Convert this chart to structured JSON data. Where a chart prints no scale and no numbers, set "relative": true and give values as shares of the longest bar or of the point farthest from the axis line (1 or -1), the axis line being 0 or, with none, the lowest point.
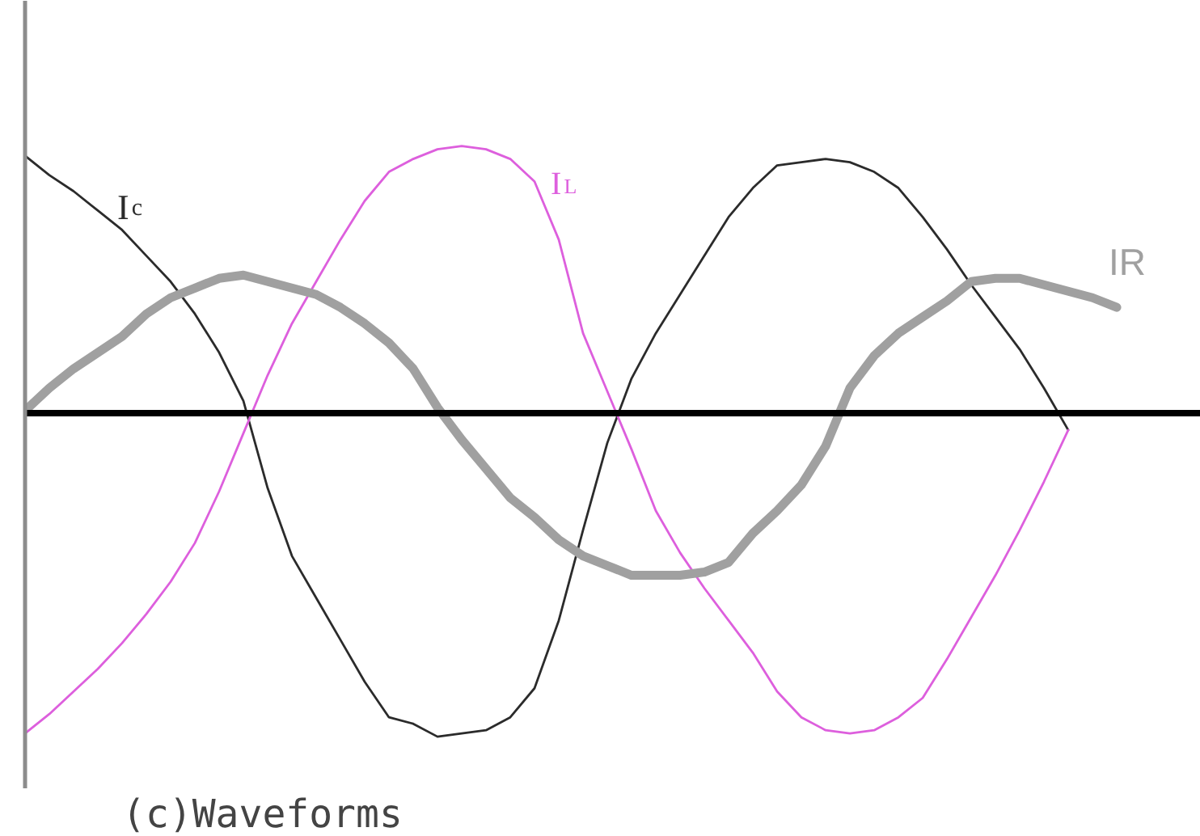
{
  "chart_data": {
    "type": "line",
    "relative": true,
    "categories": [
      null,
      null,
      null,
      null,
      null,
      null,
      null,
      null,
      null,
      null,
      null,
      null,
      null,
      null,
      null,
      null,
      null,
      null,
      null,
      null,
      null,
      null,
      null,
      null,
      null,
      null,
      null,
      null,
      null,
      null,
      null,
      null,
      null,
      null,
      null,
      null,
      null,
      null,
      null,
      null,
      null,
      null,
      null,
      null,
      null,
      null
    ],
    "series": [
      {
        "name": "I$_{c}$",
        "color": "#2b2b2b",
        "values": [
          0.8,
          0.74,
          0.69,
          0.63,
          0.57,
          0.49,
          0.41,
          0.31,
          0.19,
          0.04,
          -0.23,
          -0.44,
          -0.57,
          -0.7,
          -0.83,
          -0.94,
          -0.96,
          -1.0,
          -0.99,
          -0.98,
          -0.94,
          -0.85,
          -0.64,
          -0.36,
          -0.09,
          0.11,
          0.25,
          0.37,
          0.49,
          0.61,
          0.7,
          0.77,
          0.78,
          0.79,
          0.78,
          0.75,
          0.7,
          0.61,
          0.51,
          0.4,
          0.3,
          0.2,
          0.08,
          -0.05,
          null,
          null
        ]
      },
      {
        "name": "I$_{L}$",
        "color": "#dd5fdd",
        "values": [
          -0.99,
          -0.93,
          -0.86,
          -0.79,
          -0.71,
          -0.62,
          -0.52,
          -0.4,
          -0.24,
          -0.06,
          0.12,
          0.28,
          0.41,
          0.54,
          0.66,
          0.75,
          0.79,
          0.82,
          0.83,
          0.82,
          0.79,
          0.72,
          0.54,
          0.25,
          0.07,
          -0.11,
          -0.3,
          -0.43,
          -0.54,
          -0.64,
          -0.74,
          -0.86,
          -0.94,
          -0.98,
          -0.99,
          -0.98,
          -0.94,
          -0.88,
          -0.76,
          -0.63,
          -0.5,
          -0.36,
          -0.21,
          -0.05,
          null,
          null
        ]
      },
      {
        "name": "IR",
        "color": "#a0a0a0",
        "values": [
          0.01,
          0.08,
          0.14,
          0.19,
          0.24,
          0.31,
          0.36,
          0.39,
          0.42,
          0.43,
          0.41,
          0.39,
          0.37,
          0.33,
          0.28,
          0.22,
          0.14,
          0.02,
          -0.08,
          -0.17,
          -0.26,
          -0.32,
          -0.39,
          -0.44,
          -0.47,
          -0.5,
          -0.5,
          -0.5,
          -0.49,
          -0.46,
          -0.37,
          -0.3,
          -0.22,
          -0.1,
          0.08,
          0.18,
          0.25,
          0.3,
          0.35,
          0.41,
          0.42,
          0.42,
          0.4,
          0.38,
          0.36,
          0.33
        ]
      }
    ],
    "annotations": [
      "(c)Waveforms"
    ]
  }
}
